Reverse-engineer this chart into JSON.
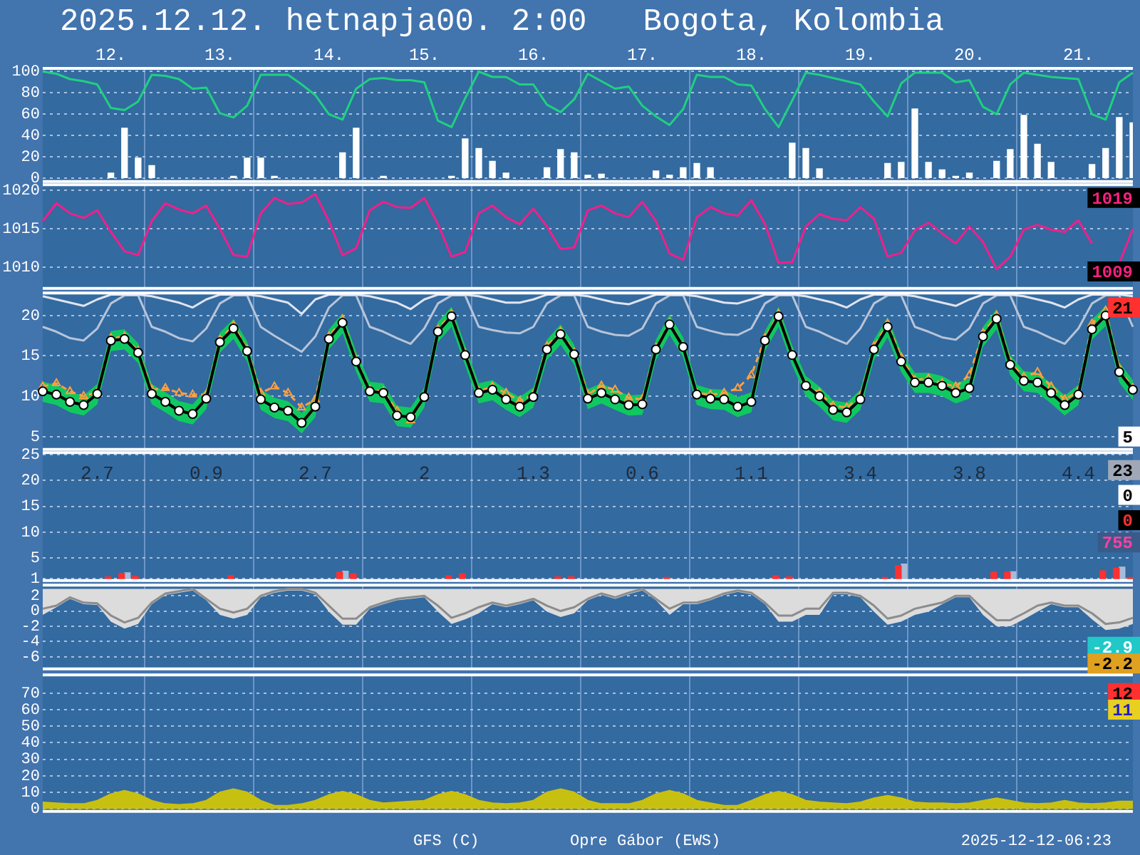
{
  "chart_data": [
    {
      "type": "line",
      "title": "2025.12.12. hetnapja00. 2:00   Bogota, Kolombia",
      "categories": [
        null,
        null,
        null,
        null,
        null,
        "12.",
        null,
        null,
        null,
        null,
        null,
        null,
        null,
        "13.",
        null,
        null,
        null,
        null,
        null,
        null,
        null,
        "14.",
        null,
        null,
        null,
        null,
        null,
        null,
        "15.",
        null,
        null,
        null,
        null,
        null,
        null,
        null,
        "16.",
        null,
        null,
        null,
        null,
        null,
        null,
        null,
        "17.",
        null,
        null,
        null,
        null,
        null,
        null,
        null,
        "18.",
        null,
        null,
        null,
        null,
        null,
        null,
        null,
        "19.",
        null,
        null,
        null,
        null,
        null,
        null,
        null,
        "20.",
        null,
        null,
        null,
        null,
        null,
        null,
        null,
        "21.",
        null,
        null,
        null,
        null
      ],
      "ylim": [
        -3,
        103
      ],
      "yticks": [
        0,
        20,
        40,
        60,
        80,
        100
      ],
      "grid": true,
      "series": [
        {
          "type": "bar",
          "color": "#ffffff",
          "values": [
            null,
            null,
            null,
            null,
            null,
            5,
            47,
            19,
            12,
            null,
            null,
            null,
            null,
            null,
            2,
            19,
            19,
            2,
            null,
            null,
            null,
            null,
            24,
            47,
            null,
            2,
            null,
            null,
            null,
            null,
            2,
            37,
            28,
            16,
            5,
            null,
            null,
            10,
            27,
            24,
            3,
            4,
            null,
            null,
            null,
            7,
            3,
            10,
            14,
            10,
            null,
            null,
            null,
            null,
            null,
            33,
            28,
            9,
            null,
            null,
            null,
            null,
            14,
            15,
            65,
            15,
            8,
            2,
            5,
            null,
            16,
            27,
            59,
            32,
            15,
            null,
            null,
            13,
            28,
            57,
            52
          ]
        },
        {
          "color": "#20d080",
          "marker": "none",
          "values": [
            100,
            98,
            93,
            91,
            88,
            66,
            64,
            72,
            97,
            96,
            93,
            84,
            85,
            61,
            57,
            68,
            97,
            97,
            97,
            88,
            78,
            60,
            55,
            84,
            93,
            94,
            92,
            92,
            90,
            54,
            48,
            75,
            100,
            95,
            95,
            88,
            88,
            69,
            62,
            74,
            98,
            91,
            84,
            86,
            68,
            58,
            50,
            65,
            97,
            95,
            95,
            88,
            87,
            65,
            48,
            73,
            99,
            97,
            94,
            91,
            88,
            72,
            58,
            89,
            99,
            99,
            99,
            90,
            92,
            67,
            60,
            88,
            99,
            97,
            95,
            94,
            93,
            60,
            55,
            90,
            99
          ]
        }
      ]
    },
    {
      "type": "line",
      "tick_labels": "y",
      "categories": [
        null,
        null,
        null,
        null,
        null,
        null,
        null,
        null,
        null,
        null,
        null,
        null,
        null,
        null,
        null,
        null,
        null,
        null,
        null,
        null,
        null,
        null,
        null,
        null,
        null,
        null,
        null,
        null,
        null,
        null,
        null,
        null,
        null,
        null,
        null,
        null,
        null,
        null,
        null,
        null,
        null,
        null,
        null,
        null,
        null,
        null,
        null,
        null,
        null,
        null,
        null,
        null,
        null,
        null,
        null,
        null,
        null,
        null,
        null,
        null,
        null,
        null,
        null,
        null,
        null,
        null,
        null,
        null,
        null,
        null,
        null,
        null,
        null,
        null,
        null,
        null,
        null,
        null,
        null,
        null,
        null
      ],
      "ylim": [
        1007.3,
        1020.7
      ],
      "yticks": [
        1010,
        1015,
        1020
      ],
      "grid": true,
      "annotations": [
        {
          "text": "1019",
          "y": 1019
        },
        {
          "text": "1009",
          "y": 1009.5
        }
      ],
      "series": [
        {
          "color": "#f0208a",
          "marker": "none",
          "values": [
            1016,
            1018.3,
            1017,
            1016.4,
            1017.4,
            1014.6,
            1012.1,
            1011.6,
            1016,
            1018.3,
            1017.5,
            1017,
            1018,
            1015,
            1011.6,
            1011.4,
            1017,
            1019,
            1018.2,
            1018.4,
            1019.5,
            1016,
            1011.6,
            1012.5,
            1017.4,
            1018.5,
            1017.8,
            1017.7,
            1019,
            1015.6,
            1011.4,
            1012,
            1017,
            1018,
            1016.5,
            1015.6,
            1017.6,
            1015.3,
            1012.4,
            1012.6,
            1017.4,
            1018,
            1017,
            1016.5,
            1018.5,
            1016,
            1011.8,
            1011,
            1016.5,
            1017.8,
            1017,
            1016.7,
            1018.7,
            1015.6,
            1010.6,
            1010.7,
            1015.3,
            1016.9,
            1016.3,
            1016.1,
            1017.8,
            1016.3,
            1011.4,
            1011.9,
            1014.8,
            1015.8,
            1014.4,
            1013.1,
            1015.3,
            1013.3,
            1009.8,
            1011.4,
            1014.9,
            1015.5,
            1014.9,
            1014.6,
            1016.1,
            1013.1,
            null,
            1010.5,
            1015
          ]
        }
      ]
    },
    {
      "type": "line",
      "tick_labels": "y",
      "categories": [
        null,
        null,
        null,
        null,
        null,
        null,
        null,
        null,
        null,
        null,
        null,
        null,
        null,
        null,
        null,
        null,
        null,
        null,
        null,
        null,
        null,
        null,
        null,
        null,
        null,
        null,
        null,
        null,
        null,
        null,
        null,
        null,
        null,
        null,
        null,
        null,
        null,
        null,
        null,
        null,
        null,
        null,
        null,
        null,
        null,
        null,
        null,
        null,
        null,
        null,
        null,
        null,
        null,
        null,
        null,
        null,
        null,
        null,
        null,
        null,
        null,
        null,
        null,
        null,
        null,
        null,
        null,
        null,
        null,
        null,
        null,
        null,
        null,
        null,
        null,
        null,
        null,
        null,
        null,
        null,
        null
      ],
      "ylim": [
        3.4,
        22.8
      ],
      "yticks": [
        5,
        10,
        15,
        20
      ],
      "grid": true,
      "annotations": [
        {
          "text": "21",
          "y": 21
        },
        {
          "text": "5",
          "y": 5
        }
      ],
      "series": [
        {
          "color": "#b8c4d8",
          "marker": "none",
          "values": [
            18.6,
            18.0,
            17.2,
            16.9,
            18.4,
            21.5,
            22.5,
            22.5,
            18.6,
            18.0,
            17.2,
            16.8,
            18.4,
            21.5,
            22.5,
            22.5,
            18.6,
            17.5,
            16.5,
            15.5,
            17.4,
            21.0,
            22.5,
            22.5,
            18.6,
            18.0,
            17.2,
            16.5,
            18.4,
            21.5,
            22.5,
            22.5,
            18.6,
            18.2,
            17.9,
            17.8,
            18.6,
            21.5,
            22.5,
            22.5,
            18.6,
            18.0,
            17.6,
            17.5,
            18.4,
            21.5,
            22.5,
            22.5,
            18.6,
            18.1,
            17.7,
            17.6,
            18.4,
            21.5,
            22.5,
            22.5,
            18.6,
            18.0,
            17.2,
            16.5,
            18.4,
            21.5,
            22.5,
            22.5,
            18.6,
            18.0,
            17.3,
            17.0,
            18.4,
            21.5,
            22.5,
            22.5,
            18.6,
            18.0,
            17.2,
            16.5,
            18.4,
            21.5,
            22.5,
            22.5,
            18.6
          ]
        },
        {
          "color": "#e0e4f0",
          "marker": "none",
          "values": [
            22.4,
            22.0,
            21.6,
            21.2,
            22.0,
            22.6,
            22.6,
            22.6,
            22.4,
            22.0,
            21.6,
            21.0,
            22.0,
            22.6,
            22.6,
            22.6,
            22.4,
            22.0,
            21.6,
            20.2,
            22.0,
            22.6,
            22.6,
            22.6,
            22.4,
            22.0,
            21.6,
            20.8,
            22.0,
            22.6,
            22.6,
            22.6,
            22.4,
            22.0,
            21.6,
            21.6,
            22.0,
            22.6,
            22.6,
            22.6,
            22.4,
            22.0,
            21.6,
            21.4,
            22.0,
            22.6,
            22.6,
            22.6,
            22.4,
            22.0,
            21.6,
            21.5,
            22.0,
            22.6,
            22.6,
            22.6,
            22.4,
            22.0,
            21.6,
            21.0,
            22.0,
            22.6,
            22.6,
            22.6,
            22.4,
            22.0,
            21.6,
            21.2,
            22.0,
            22.6,
            22.6,
            22.6,
            22.4,
            22.0,
            21.6,
            21.0,
            22.0,
            22.6,
            22.6,
            22.6,
            22.4
          ]
        },
        {
          "color": "#ffa040",
          "marker": "triangle",
          "line_style": "dashed",
          "values": [
            11.2,
            11.6,
            10.6,
            10.0,
            10.5,
            17.2,
            17.4,
            15.6,
            10.8,
            11.0,
            10.4,
            10.2,
            10.2,
            17.0,
            18.8,
            15.8,
            10.4,
            11.2,
            10.4,
            8.6,
            9.6,
            17.4,
            19.5,
            14.5,
            10.8,
            10.6,
            8.2,
            7.0,
            10.0,
            18.3,
            20.2,
            15.3,
            10.6,
            11.2,
            10.4,
            9.4,
            10.2,
            16.2,
            18.0,
            15.4,
            10.2,
            11.3,
            10.8,
            9.8,
            9.6,
            16.0,
            19.1,
            16.2,
            10.4,
            10.2,
            10.4,
            11.0,
            12.6,
            17.2,
            20.2,
            15.2,
            11.4,
            10.4,
            8.8,
            8.6,
            10.0,
            16.2,
            19.0,
            14.8,
            12.0,
            12.2,
            11.6,
            11.2,
            12.6,
            17.8,
            20.0,
            14.2,
            12.4,
            13.0,
            11.2,
            9.6,
            10.6,
            19.0,
            20.6,
            13.4,
            11.0
          ]
        },
        {
          "color": "#000000",
          "marker": "circle",
          "values": [
            10.6,
            10.2,
            9.3,
            8.9,
            10.3,
            16.9,
            17.1,
            15.4,
            10.3,
            9.3,
            8.2,
            7.8,
            9.7,
            16.7,
            18.4,
            15.6,
            9.6,
            8.6,
            8.2,
            6.7,
            8.7,
            17.1,
            19.1,
            14.3,
            10.6,
            10.4,
            7.6,
            7.4,
            9.9,
            18,
            19.9,
            15.1,
            10.4,
            10.8,
            9.6,
            8.7,
            9.9,
            15.8,
            17.7,
            15.2,
            9.7,
            10.4,
            9.6,
            8.9,
            9.0,
            15.8,
            18.9,
            16.1,
            10.2,
            9.7,
            9.6,
            8.7,
            9.3,
            16.9,
            19.9,
            15.1,
            11.3,
            10.0,
            8.3,
            8.0,
            9.6,
            15.8,
            18.6,
            14.3,
            11.7,
            11.7,
            11.3,
            10.4,
            11.0,
            17.4,
            19.6,
            13.9,
            11.9,
            11.7,
            10.4,
            8.9,
            10.2,
            18.3,
            20.0,
            13.0,
            10.8
          ],
          "lower": [
            9.3,
            8.9,
            8.0,
            7.6,
            9.0,
            15.6,
            15.8,
            14.1,
            9.0,
            8.0,
            6.9,
            6.5,
            8.4,
            15.4,
            17.1,
            14.3,
            8.3,
            7.3,
            6.9,
            5.4,
            7.4,
            15.8,
            17.8,
            13.0,
            9.3,
            9.1,
            6.3,
            6.1,
            8.6,
            16.7,
            18.6,
            13.8,
            9.1,
            9.5,
            8.3,
            7.4,
            8.6,
            14.5,
            16.4,
            13.9,
            8.4,
            9.1,
            8.3,
            7.6,
            7.7,
            14.5,
            17.6,
            14.8,
            8.9,
            8.4,
            8.3,
            7.4,
            8.0,
            15.6,
            18.6,
            13.8,
            10.0,
            8.7,
            7.0,
            6.7,
            8.3,
            14.5,
            17.3,
            13.0,
            10.4,
            10.4,
            10.0,
            9.1,
            9.7,
            16.1,
            18.3,
            12.6,
            10.6,
            10.4,
            9.1,
            7.6,
            8.9,
            17.0,
            18.7,
            11.7,
            9.5
          ],
          "upper": [
            11.8,
            11.4,
            10.5,
            10.1,
            11.5,
            18.1,
            18.3,
            16.6,
            11.5,
            10.5,
            9.4,
            9.0,
            10.9,
            17.9,
            19.6,
            16.8,
            10.8,
            9.8,
            9.4,
            7.9,
            9.9,
            18.3,
            20.3,
            15.5,
            11.8,
            11.6,
            8.8,
            8.6,
            11.1,
            19.2,
            21.1,
            16.3,
            11.6,
            12.0,
            10.8,
            9.9,
            11.1,
            17.0,
            18.9,
            16.4,
            10.9,
            11.6,
            10.8,
            10.1,
            10.2,
            17.0,
            20.1,
            17.3,
            11.4,
            10.9,
            10.8,
            9.9,
            10.5,
            18.1,
            21.1,
            16.3,
            12.5,
            11.2,
            9.5,
            9.2,
            10.8,
            17.0,
            19.8,
            15.5,
            12.9,
            12.9,
            12.5,
            11.6,
            12.2,
            18.6,
            20.8,
            15.1,
            13.1,
            12.9,
            11.6,
            10.1,
            11.4,
            19.5,
            21.2,
            14.2,
            12.0
          ]
        }
      ]
    },
    {
      "type": "bar",
      "tick_labels": "y",
      "categories": [
        null,
        null,
        null,
        null,
        null,
        null,
        null,
        null,
        null,
        null,
        null,
        null,
        null,
        null,
        null,
        null,
        null,
        null,
        null,
        null,
        null,
        null,
        null,
        null,
        null,
        null,
        null,
        null,
        null,
        null,
        null,
        null,
        null,
        null,
        null,
        null,
        null,
        null,
        null,
        null,
        null,
        null,
        null,
        null,
        null,
        null,
        null,
        null,
        null,
        null,
        null,
        null,
        null,
        null,
        null,
        null,
        null,
        null,
        null,
        null,
        null,
        null,
        null,
        null,
        null,
        null,
        null,
        null,
        null,
        null,
        null,
        null,
        null,
        null,
        null,
        null,
        null,
        null,
        null,
        null,
        null
      ],
      "ylim": [
        0.6,
        25.4
      ],
      "yticks": [
        1,
        5,
        10,
        15,
        20,
        25
      ],
      "grid": true,
      "annotations": [
        "2.7",
        "0.9",
        "2.7",
        "2",
        "1.3",
        "0.6",
        "1.1",
        "3.4",
        "3.8",
        "4.4",
        {
          "text": "23",
          "y": 22
        },
        {
          "text": "0",
          "y": 17.2
        },
        {
          "text": "0",
          "y": 12.3
        },
        {
          "text": "755",
          "y": 8
        }
      ],
      "series": [
        {
          "color": "#a8bcd8",
          "values": [
            null,
            null,
            null,
            null,
            null,
            null,
            2.1,
            null,
            null,
            null,
            null,
            null,
            null,
            null,
            null,
            null,
            null,
            null,
            null,
            null,
            null,
            null,
            2.4,
            null,
            null,
            null,
            null,
            null,
            null,
            null,
            null,
            null,
            null,
            null,
            null,
            null,
            null,
            null,
            null,
            null,
            null,
            null,
            null,
            null,
            null,
            null,
            null,
            null,
            null,
            null,
            null,
            null,
            null,
            null,
            null,
            null,
            null,
            null,
            null,
            null,
            null,
            null,
            null,
            3.8,
            null,
            null,
            null,
            null,
            null,
            null,
            null,
            2.3,
            null,
            null,
            null,
            null,
            null,
            null,
            null,
            3.2,
            null
          ]
        },
        {
          "color": "#ff3030",
          "values": [
            null,
            null,
            null,
            null,
            null,
            1.3,
            2.0,
            1.4,
            null,
            null,
            null,
            null,
            null,
            null,
            1.5,
            null,
            null,
            null,
            null,
            null,
            null,
            null,
            2.2,
            1.9,
            null,
            null,
            null,
            null,
            null,
            null,
            1.5,
            1.9,
            null,
            null,
            null,
            null,
            null,
            null,
            1.3,
            1.3,
            null,
            null,
            null,
            null,
            null,
            null,
            1.2,
            null,
            null,
            null,
            null,
            null,
            null,
            null,
            1.5,
            1.3,
            null,
            null,
            null,
            null,
            null,
            null,
            1.2,
            3.5,
            null,
            null,
            null,
            null,
            null,
            null,
            2.2,
            2.2,
            null,
            null,
            null,
            null,
            null,
            null,
            2.5,
            3.0,
            1.2
          ]
        }
      ]
    },
    {
      "type": "line",
      "tick_labels": "y",
      "categories": [
        null,
        null,
        null,
        null,
        null,
        null,
        null,
        null,
        null,
        null,
        null,
        null,
        null,
        null,
        null,
        null,
        null,
        null,
        null,
        null,
        null,
        null,
        null,
        null,
        null,
        null,
        null,
        null,
        null,
        null,
        null,
        null,
        null,
        null,
        null,
        null,
        null,
        null,
        null,
        null,
        null,
        null,
        null,
        null,
        null,
        null,
        null,
        null,
        null,
        null,
        null,
        null,
        null,
        null,
        null,
        null,
        null,
        null,
        null,
        null,
        null,
        null,
        null,
        null,
        null,
        null,
        null,
        null,
        null,
        null,
        null,
        null,
        null,
        null,
        null,
        null,
        null,
        null,
        null,
        null,
        null
      ],
      "ylim": [
        -7.6,
        3.4
      ],
      "yticks": [
        2,
        0,
        -2,
        -4,
        -6
      ],
      "grid": true,
      "annotations": [
        {
          "text": "-2.9",
          "y": -4.7
        },
        {
          "text": "-2.2",
          "y": -6.9
        }
      ],
      "series": [
        {
          "color": "#8c8c8c",
          "marker": "none",
          "values": [
            0.3,
            0.7,
            1.8,
            1.1,
            1.0,
            -0.6,
            -1.5,
            -0.9,
            1.1,
            2.3,
            2.6,
            2.9,
            1.6,
            0.3,
            -0.2,
            0.3,
            2.0,
            2.6,
            2.9,
            2.9,
            2.4,
            0.7,
            -1.0,
            -1.0,
            0.5,
            1.1,
            1.6,
            1.8,
            2.0,
            0.7,
            -0.9,
            -0.3,
            0.5,
            1.1,
            0.7,
            1.1,
            1.6,
            0.7,
            0,
            0.5,
            1.6,
            2.3,
            1.8,
            2.4,
            2.9,
            1.6,
            0.3,
            1.1,
            1.1,
            1.6,
            2.3,
            2.7,
            2.4,
            1.1,
            -0.6,
            -0.6,
            0.3,
            0.3,
            2.4,
            2.4,
            2.0,
            0.7,
            -1.0,
            -0.6,
            0.3,
            0.7,
            1.1,
            2.0,
            2.0,
            0.3,
            -1.2,
            -1.2,
            -0.3,
            0.7,
            1.1,
            0.7,
            0.7,
            -0.3,
            -1.7,
            -1.5,
            -0.9
          ],
          "lower": [
            -0.5,
            0.5,
            1.6,
            0.9,
            0.8,
            -1.4,
            -2.3,
            -1.7,
            0.9,
            2.1,
            2.4,
            2.7,
            1.4,
            -0.5,
            -1.0,
            -0.5,
            1.8,
            2.4,
            2.7,
            2.7,
            2.2,
            -0.1,
            -1.8,
            -1.8,
            0.3,
            0.9,
            1.4,
            1.6,
            1.8,
            -0.1,
            -1.7,
            -1.1,
            -0.3,
            0.9,
            0.5,
            0.9,
            1.4,
            -0.1,
            -0.8,
            -0.3,
            1.4,
            2.1,
            1.6,
            2.2,
            2.7,
            1.4,
            -0.5,
            0.9,
            0.9,
            1.4,
            2.1,
            2.5,
            2.2,
            0.9,
            -1.4,
            -1.4,
            -0.5,
            -0.5,
            2.2,
            2.2,
            1.8,
            -0.1,
            -1.8,
            -1.4,
            -0.5,
            -0.1,
            0.9,
            1.8,
            1.8,
            -0.5,
            -2.0,
            -2.0,
            -1.1,
            -0.1,
            0.9,
            0.5,
            0.5,
            -1.1,
            -2.5,
            -2.3,
            -1.7
          ],
          "upper": [
            2.9,
            2.9,
            2.9,
            2.9,
            2.9,
            2.9,
            2.9,
            2.9,
            2.9,
            2.9,
            2.9,
            2.9,
            2.9,
            2.9,
            2.9,
            2.9,
            2.9,
            2.9,
            2.9,
            2.9,
            2.9,
            2.9,
            2.9,
            2.9,
            2.9,
            2.9,
            2.9,
            2.9,
            2.9,
            2.9,
            2.9,
            2.9,
            2.9,
            2.9,
            2.9,
            2.9,
            2.9,
            2.9,
            2.9,
            2.9,
            2.9,
            2.9,
            2.9,
            2.9,
            2.9,
            2.9,
            2.9,
            2.9,
            2.9,
            2.9,
            2.9,
            2.9,
            2.9,
            2.9,
            2.9,
            2.9,
            2.9,
            2.9,
            2.9,
            2.9,
            2.9,
            2.9,
            2.9,
            2.9,
            2.9,
            2.9,
            2.9,
            2.9,
            2.9,
            2.9,
            2.9,
            2.9,
            2.9,
            2.9,
            2.9,
            2.9,
            2.9,
            2.9,
            2.9,
            2.9,
            2.9
          ]
        }
      ]
    },
    {
      "type": "area",
      "tick_labels": "y",
      "categories": [
        null,
        null,
        null,
        null,
        null,
        null,
        null,
        null,
        null,
        null,
        null,
        null,
        null,
        null,
        null,
        null,
        null,
        null,
        null,
        null,
        null,
        null,
        null,
        null,
        null,
        null,
        null,
        null,
        null,
        null,
        null,
        null,
        null,
        null,
        null,
        null,
        null,
        null,
        null,
        null,
        null,
        null,
        null,
        null,
        null,
        null,
        null,
        null,
        null,
        null,
        null,
        null,
        null,
        null,
        null,
        null,
        null,
        null,
        null,
        null,
        null,
        null,
        null,
        null,
        null,
        null,
        null,
        null,
        null,
        null,
        null,
        null,
        null,
        null,
        null,
        null,
        null,
        null,
        null,
        null,
        null
      ],
      "ylim": [
        -1.5,
        81
      ],
      "yticks": [
        0,
        10,
        20,
        30,
        40,
        50,
        60,
        70
      ],
      "grid": true,
      "annotations": [
        {
          "text": "12",
          "y": 70
        },
        {
          "text": "11",
          "y": 60
        },
        "GFS (C)",
        "Opre Gábor (EWS)",
        "2025-12-12-06:23"
      ],
      "series": [
        {
          "color": "#c8c010",
          "values": [
            4,
            3.5,
            3,
            3,
            5,
            9,
            11,
            9,
            5,
            3,
            2.5,
            3,
            5,
            10,
            12,
            10,
            5,
            2,
            2,
            3,
            5,
            8.5,
            10.5,
            8.5,
            5,
            3.5,
            4,
            4.5,
            5,
            8.5,
            10.5,
            8.5,
            5,
            3.5,
            3,
            3.5,
            5,
            10,
            12,
            10,
            5,
            3,
            3,
            3,
            5,
            9,
            11,
            9,
            5,
            3.5,
            2,
            2,
            5,
            8.5,
            10.5,
            8.5,
            5,
            4,
            3.5,
            3,
            4,
            6.5,
            8,
            6.5,
            4,
            3.5,
            3.5,
            3,
            3.5,
            5,
            6.5,
            5,
            3.5,
            3,
            3.5,
            5,
            3.5,
            3,
            3.5,
            4.5,
            4.5
          ]
        }
      ]
    }
  ]
}
